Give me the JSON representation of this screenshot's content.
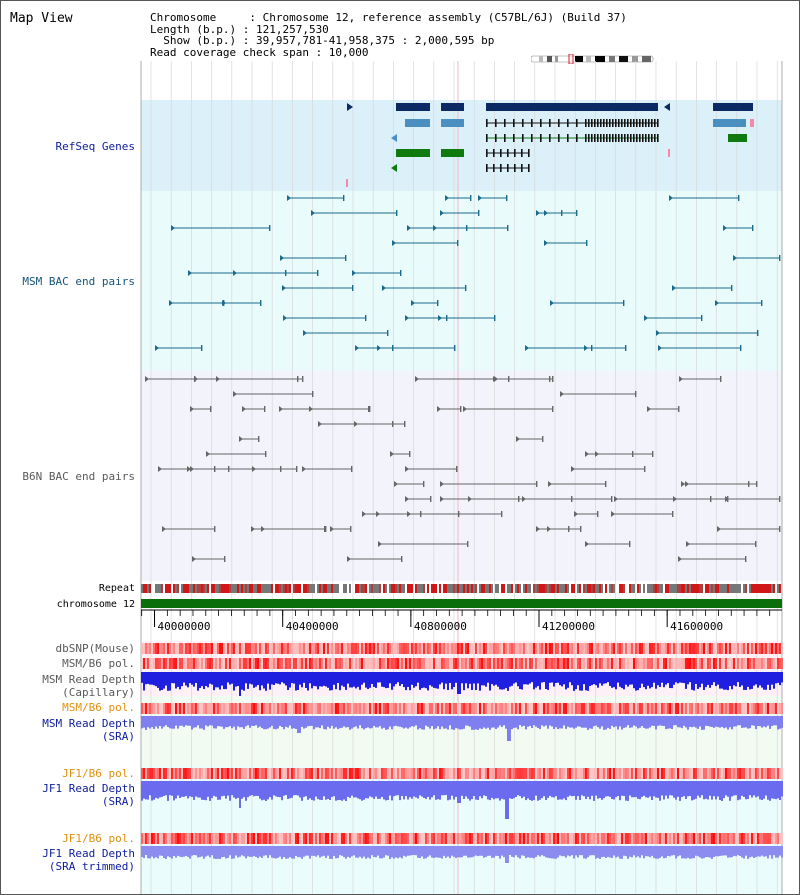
{
  "view": {
    "title": "Map View",
    "info_lines": [
      "Chromosome     : Chromosome 12, reference assembly (C57BL/6J) (Build 37)",
      "Length (b.p.) : 121,257,530",
      "  Show (b.p.) : 39,957,781-41,958,375 : 2,000,595 bp",
      "Read coverage check span : 10,000"
    ]
  },
  "axis": {
    "start": 39957781,
    "end": 41958375,
    "ticks": [
      {
        "value": 40000000,
        "label": "40000000"
      },
      {
        "value": 40400000,
        "label": "40400000"
      },
      {
        "value": 40800000,
        "label": "40800000"
      },
      {
        "value": 41200000,
        "label": "41200000"
      },
      {
        "value": 41600000,
        "label": "41600000"
      }
    ]
  },
  "tracks": {
    "refseq": {
      "label": "RefSeq Genes",
      "bg": "#dcf0fa"
    },
    "msm_bac": {
      "label": "MSM BAC end pairs",
      "bg": "#e9fbfb",
      "color": "#1a6b8c"
    },
    "b6n_bac": {
      "label": "B6N BAC end pairs",
      "bg": "#f3f3fb",
      "color": "#666666"
    },
    "repeat": {
      "label": "Repeat"
    },
    "chromosome": {
      "label": "chromosome 12",
      "color": "#0a6e0a"
    },
    "dbsnp": {
      "label": "dbSNP(Mouse)"
    },
    "msm_b6_pol": {
      "label": "MSM/B6 pol."
    },
    "msm_depth_cap": {
      "label_lines": [
        "MSM Read Depth",
        "(Capillary)"
      ],
      "color": "#1f1fe0"
    },
    "msm_b6_pol2": {
      "label": "MSM/B6 pol."
    },
    "msm_depth_sra": {
      "label_lines": [
        "MSM Read Depth",
        "(SRA)"
      ],
      "color": "#7f7ff0"
    },
    "jf1_b6_pol": {
      "label": "JF1/B6 pol."
    },
    "jf1_depth_sra": {
      "label_lines": [
        "JF1 Read Depth",
        "(SRA)"
      ],
      "color": "#6b6bf0"
    },
    "jf1_b6_pol2": {
      "label": "JF1/B6 pol."
    },
    "jf1_depth_trim": {
      "label_lines": [
        "JF1 Read Depth",
        "(SRA trimmed)"
      ],
      "color": "#8c8cf0"
    }
  },
  "colors": {
    "gene_navy": "#0b2a63",
    "gene_steel": "#4a8fbf",
    "gene_black": "#111111",
    "gene_green": "#0f7a10",
    "gene_pink": "#f08aa8",
    "repeat_red": "#d01818",
    "repeat_gray": "#777777",
    "pol_light": "#f8b8b8",
    "pol_dark": "#e02020",
    "label_blue": "#0d1d9b",
    "label_orange": "#e19010"
  }
}
